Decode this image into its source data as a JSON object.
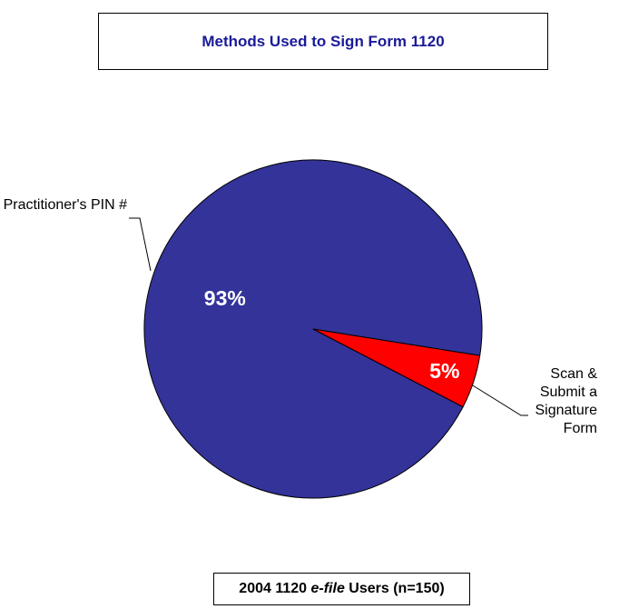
{
  "chart_data": {
    "type": "pie",
    "title": "Methods Used to Sign Form 1120",
    "categories": [
      "Practitioner's PIN #",
      "Scan & Submit a Signature Form"
    ],
    "values": [
      93,
      5
    ],
    "value_labels": [
      "93%",
      "5%"
    ],
    "colors": [
      "#333399",
      "#ff0000"
    ],
    "footer": [
      "2004 1120",
      "e-file",
      "Users (n=150)"
    ]
  }
}
